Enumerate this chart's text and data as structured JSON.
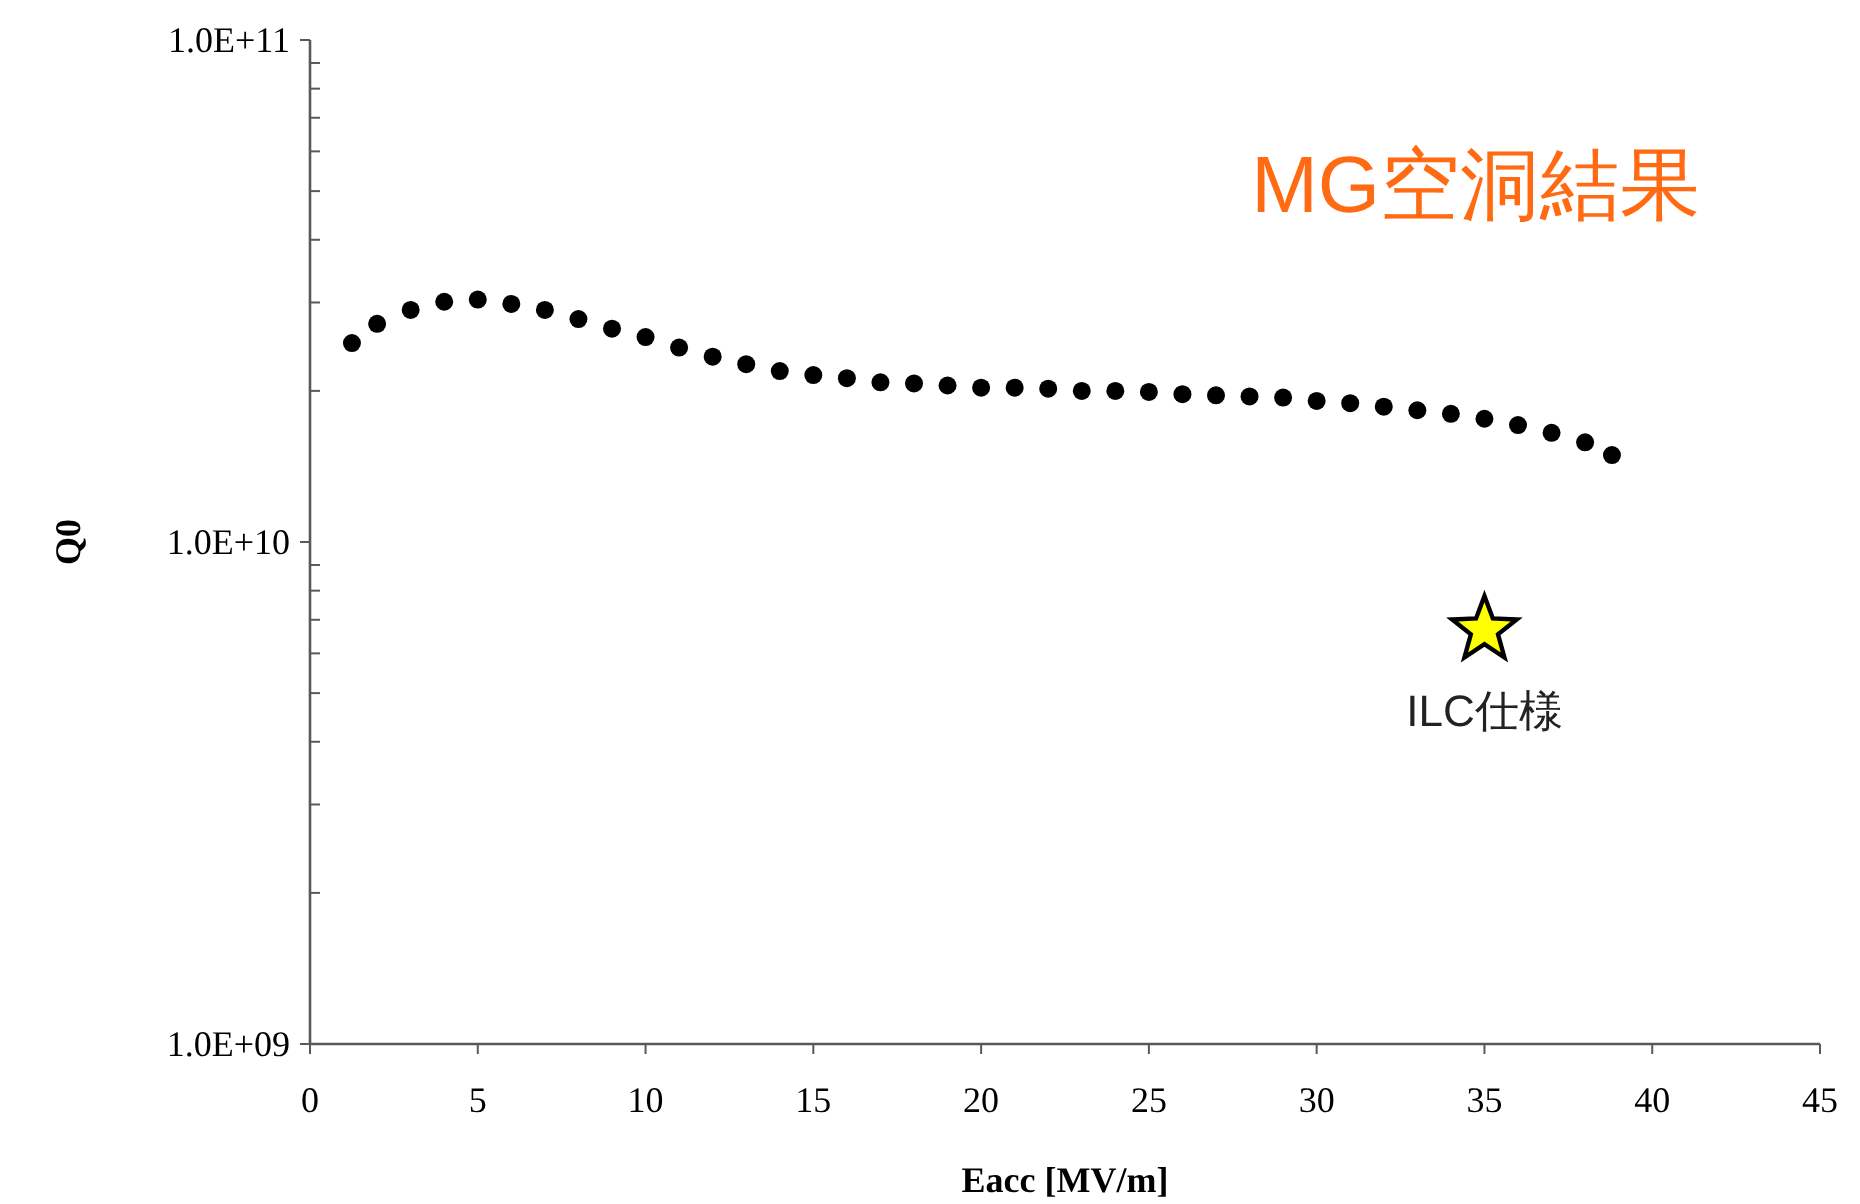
{
  "chart_data": {
    "type": "scatter",
    "title": "MG空洞結果",
    "xlabel": "Eacc [MV/m]",
    "ylabel": "Q0",
    "log": "y",
    "grid": false,
    "xlim": [
      0,
      45
    ],
    "xticks": [
      0,
      5,
      10,
      15,
      20,
      25,
      30,
      35,
      40,
      45
    ],
    "ylim": [
      1000000000.0,
      100000000000.0
    ],
    "yticks": [
      {
        "value": 1000000000.0,
        "label": "1.0E+09"
      },
      {
        "value": 10000000000.0,
        "label": "1.0E+10"
      },
      {
        "value": 100000000000.0,
        "label": "1.0E+11"
      }
    ],
    "series": [
      {
        "color": "#000000",
        "marker": "circle",
        "x": [
          1.25,
          2,
          3,
          4,
          5,
          6,
          7,
          8,
          9,
          10,
          11,
          12,
          13,
          14,
          15,
          16,
          17,
          18,
          19,
          20,
          21,
          22,
          23,
          24,
          25,
          26,
          27,
          28,
          29,
          30,
          31,
          32,
          33,
          34,
          35,
          36,
          37,
          38,
          38.8
        ],
        "values": [
          24900000000.0,
          27200000000.0,
          29000000000.0,
          30100000000.0,
          30400000000.0,
          29800000000.0,
          29000000000.0,
          27800000000.0,
          26600000000.0,
          25600000000.0,
          24400000000.0,
          23400000000.0,
          22600000000.0,
          21900000000.0,
          21500000000.0,
          21200000000.0,
          20800000000.0,
          20700000000.0,
          20500000000.0,
          20300000000.0,
          20300000000.0,
          20200000000.0,
          20000000000.0,
          20000000000.0,
          19900000000.0,
          19700000000.0,
          19600000000.0,
          19500000000.0,
          19400000000.0,
          19100000000.0,
          18900000000.0,
          18600000000.0,
          18300000000.0,
          18000000000.0,
          17600000000.0,
          17100000000.0,
          16500000000.0,
          15800000000.0,
          14900000000.0
        ]
      },
      {
        "color": "#ffff00",
        "marker": "star",
        "x": [
          35
        ],
        "values": [
          6680000000.0
        ]
      }
    ],
    "annotations": [
      {
        "text": "ILC仕様",
        "x": 35,
        "y": 6680000000.0
      }
    ]
  }
}
